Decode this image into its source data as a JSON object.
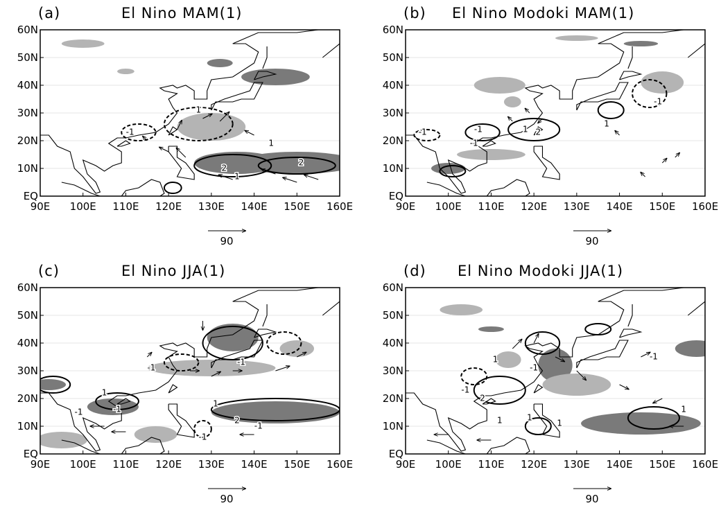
{
  "panels": [
    {
      "label": "(a)",
      "title": "El Nino MAM(1)",
      "contour_labels": [
        "1",
        "-1",
        "1",
        "2",
        "1",
        "2"
      ]
    },
    {
      "label": "(b)",
      "title": "El Nino Modoki MAM(1)",
      "contour_labels": [
        "-1",
        "-1",
        "-1",
        "1",
        "2",
        "1",
        "-1"
      ]
    },
    {
      "label": "(c)",
      "title": "El Nino JJA(1)",
      "contour_labels": [
        "1",
        "-1",
        "-1",
        "-1",
        "-1",
        "1",
        "2",
        "-1",
        "-1"
      ]
    },
    {
      "label": "(d)",
      "title": "El Nino Modoki JJA(1)",
      "contour_labels": [
        "1",
        "-1",
        "2",
        "1",
        "-1",
        "1",
        "-1",
        "1",
        "1"
      ]
    }
  ],
  "x_ticks": [
    "90E",
    "100E",
    "110E",
    "120E",
    "130E",
    "140E",
    "150E",
    "160E"
  ],
  "y_ticks": [
    "EQ",
    "10N",
    "20N",
    "30N",
    "40N",
    "50N",
    "60N"
  ],
  "vector_scale": "90"
}
